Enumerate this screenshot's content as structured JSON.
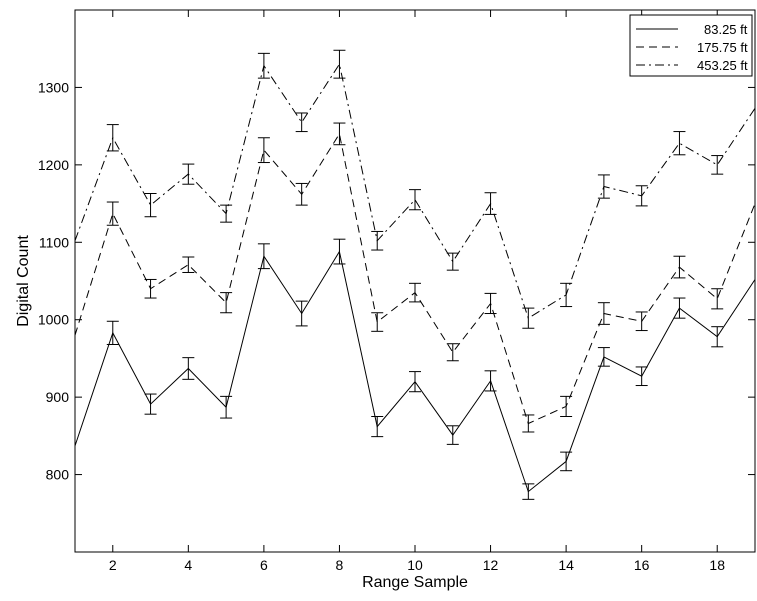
{
  "chart_data": {
    "type": "line",
    "title": "",
    "xlabel": "Range Sample",
    "ylabel": "Digital Count",
    "xlim": [
      1,
      19
    ],
    "ylim": [
      700,
      1400
    ],
    "xticks": [
      2,
      4,
      6,
      8,
      10,
      12,
      14,
      16,
      18
    ],
    "yticks": [
      800,
      900,
      1000,
      1100,
      1200,
      1300
    ],
    "grid": false,
    "legend_position": "top-right",
    "x": [
      1,
      2,
      3,
      4,
      5,
      6,
      7,
      8,
      9,
      10,
      11,
      12,
      13,
      14,
      15,
      16,
      17,
      18,
      19
    ],
    "series": [
      {
        "name": "83.25 ft",
        "line_style": "solid",
        "values": [
          837,
          983,
          891,
          937,
          887,
          1082,
          1008,
          1088,
          862,
          920,
          851,
          921,
          778,
          817,
          952,
          927,
          1015,
          978,
          1052
        ],
        "errors": [
          null,
          15,
          13,
          14,
          14,
          16,
          16,
          16,
          13,
          13,
          12,
          13,
          10,
          12,
          12,
          12,
          13,
          13,
          null
        ]
      },
      {
        "name": "175.75 ft",
        "line_style": "dashed",
        "values": [
          980,
          1137,
          1040,
          1071,
          1022,
          1219,
          1162,
          1240,
          997,
          1035,
          958,
          1021,
          866,
          888,
          1008,
          998,
          1068,
          1027,
          1150
        ],
        "errors": [
          null,
          15,
          12,
          10,
          13,
          16,
          14,
          14,
          12,
          12,
          11,
          13,
          11,
          13,
          14,
          12,
          14,
          13,
          null
        ]
      },
      {
        "name": "453.25 ft",
        "line_style": "dash-dot",
        "values": [
          1102,
          1235,
          1148,
          1188,
          1137,
          1328,
          1255,
          1330,
          1102,
          1155,
          1075,
          1150,
          1002,
          1032,
          1172,
          1160,
          1228,
          1200,
          1273
        ],
        "errors": [
          null,
          17,
          15,
          13,
          11,
          16,
          12,
          18,
          12,
          13,
          11,
          14,
          13,
          15,
          15,
          13,
          15,
          12,
          null
        ]
      }
    ]
  }
}
